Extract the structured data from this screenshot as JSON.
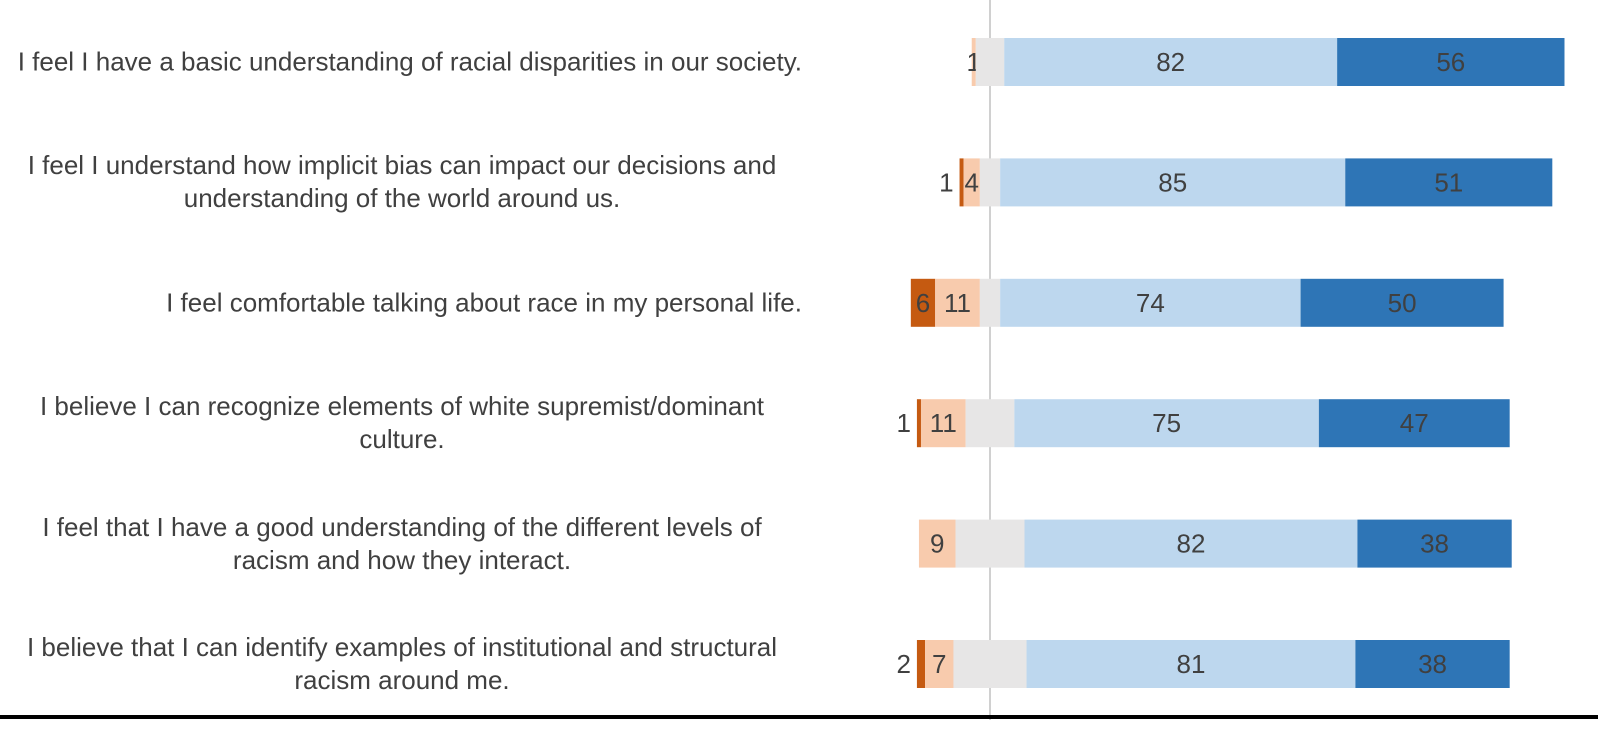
{
  "chart_data": {
    "type": "diverging-bar",
    "categories": [
      "I feel I have a basic understanding of racial disparities in our society.",
      "I feel I understand how implicit bias can impact our decisions and understanding of the world around us.",
      "I feel comfortable talking about race in my personal life.",
      "I believe I can recognize elements of white supremist/dominant culture.",
      "I feel that I have a good understanding of the different levels of racism and how they interact.",
      "I believe that I can identify examples of institutional and structural racism around me."
    ],
    "series": [
      {
        "color": "#c55a11",
        "values": [
          null,
          1,
          6,
          1,
          null,
          2
        ],
        "labeled": true
      },
      {
        "color": "#f8cbad",
        "values": [
          1,
          4,
          11,
          11,
          9,
          7
        ],
        "labeled": true
      },
      {
        "color": "#e7e6e6",
        "values": [
          7,
          5,
          5,
          12,
          17,
          18
        ],
        "labeled": false
      },
      {
        "color": "#bdd7ee",
        "values": [
          82,
          85,
          74,
          75,
          82,
          81
        ],
        "labeled": true
      },
      {
        "color": "#2e75b6",
        "values": [
          56,
          51,
          50,
          47,
          38,
          38
        ],
        "labeled": true
      }
    ]
  }
}
